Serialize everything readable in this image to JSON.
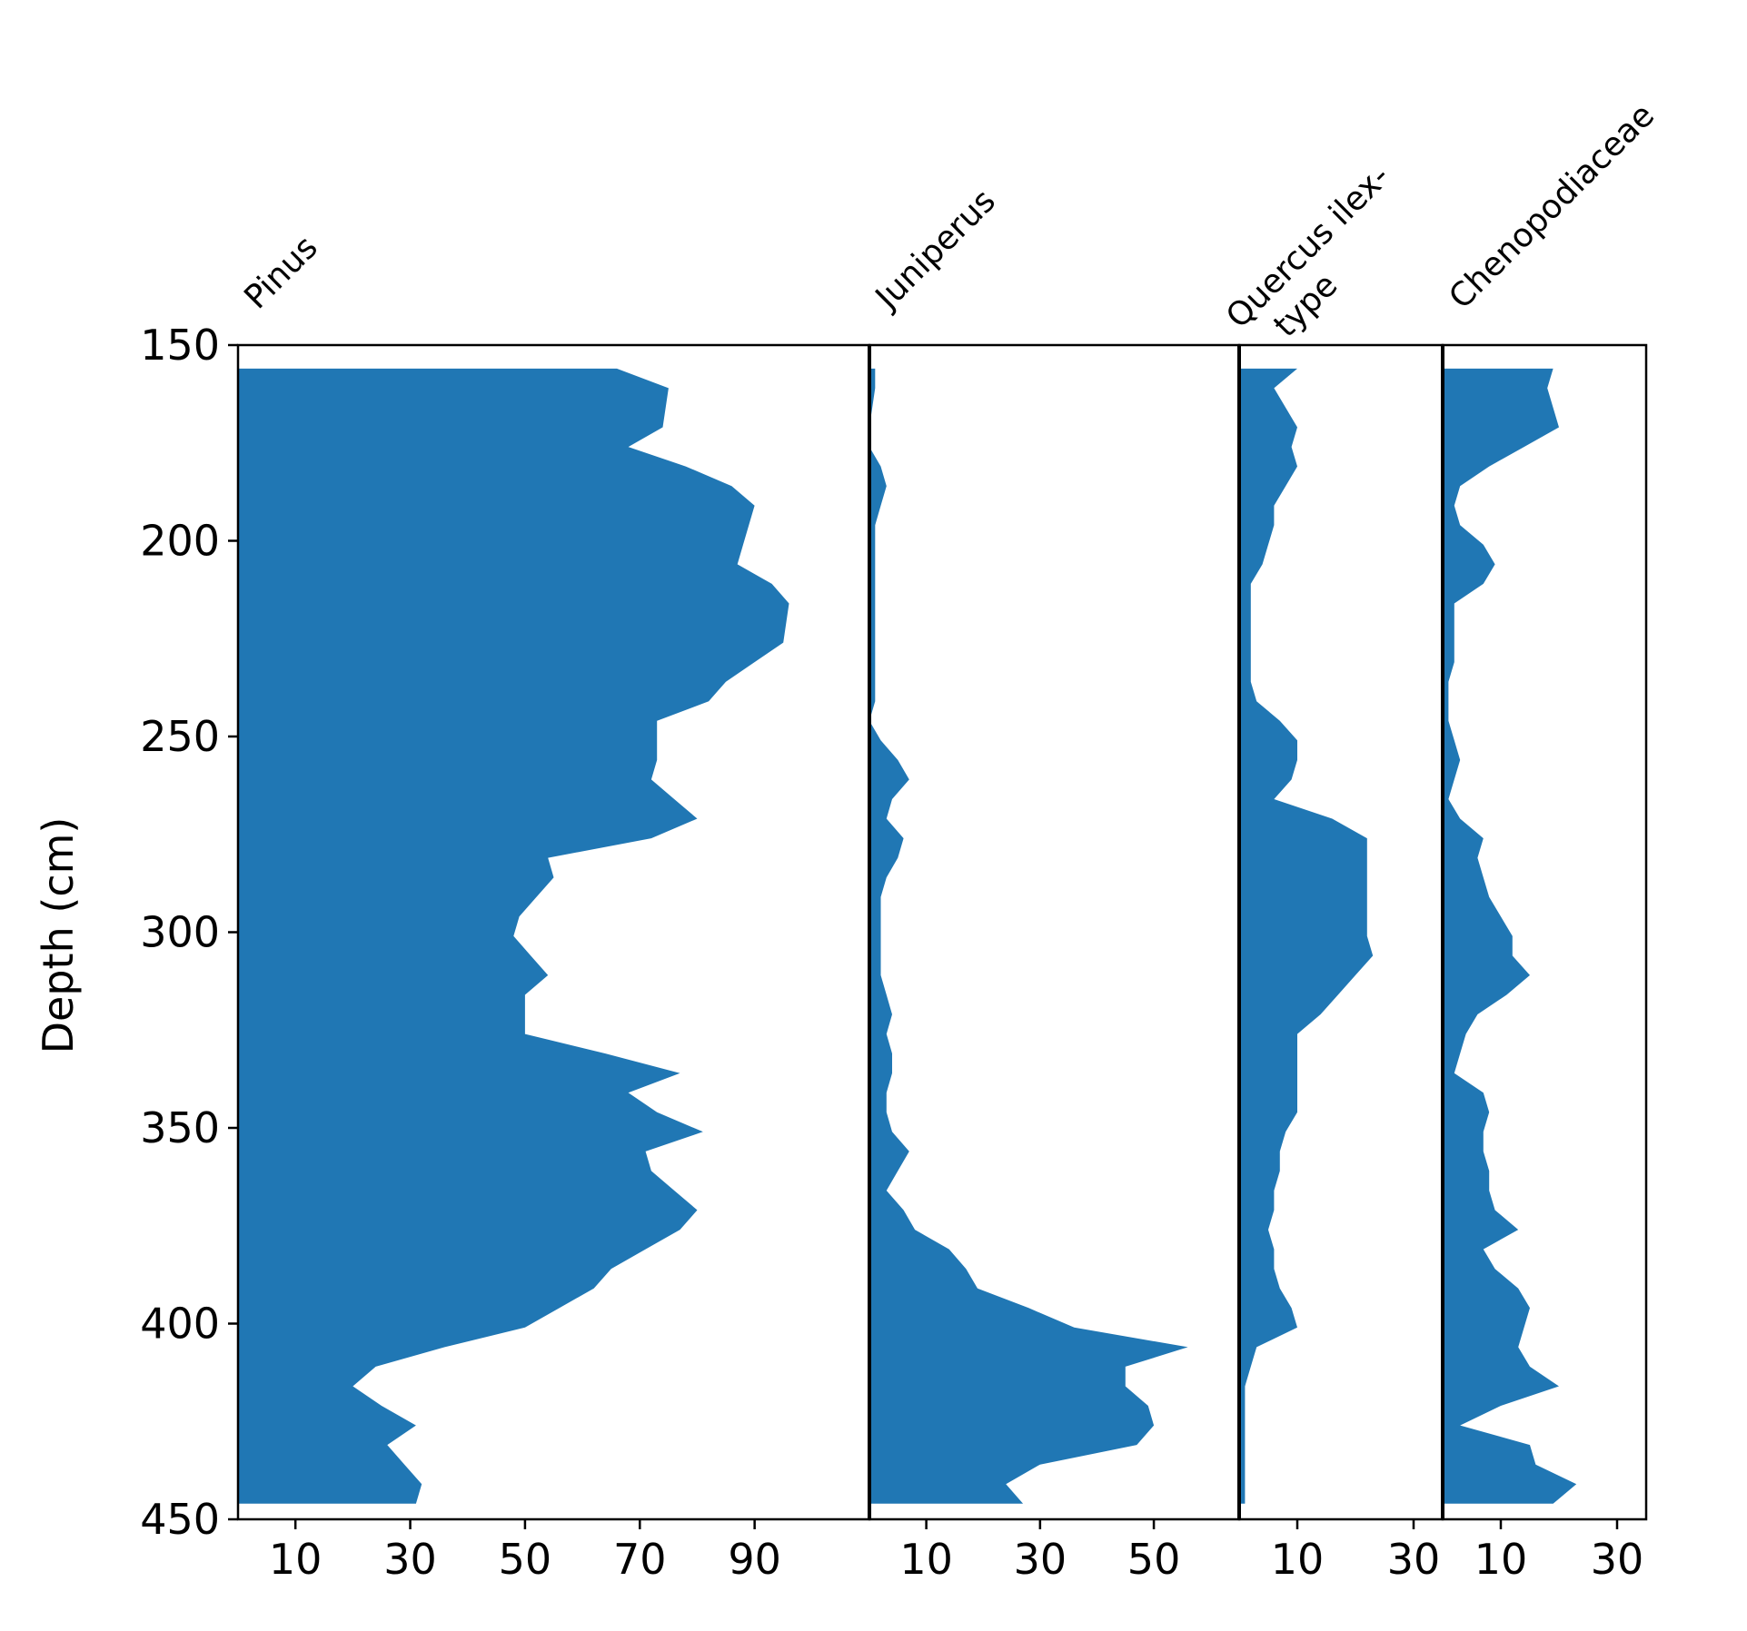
{
  "chart_data": {
    "type": "area",
    "ylabel": "Depth (cm)",
    "ylim": [
      150,
      450
    ],
    "y_inverted": true,
    "yticks": [
      150,
      200,
      250,
      300,
      350,
      400,
      450
    ],
    "series_color": "#2077b4",
    "depths": [
      156,
      161,
      171,
      176,
      181,
      186,
      191,
      196,
      201,
      206,
      211,
      216,
      226,
      231,
      236,
      241,
      246,
      251,
      256,
      261,
      266,
      271,
      276,
      281,
      286,
      291,
      296,
      301,
      306,
      311,
      316,
      321,
      326,
      331,
      336,
      341,
      346,
      351,
      356,
      361,
      366,
      371,
      376,
      381,
      386,
      391,
      396,
      401,
      406,
      411,
      416,
      421,
      426,
      431,
      436,
      441,
      446
    ],
    "panels": [
      {
        "name": "Pinus",
        "xlim": [
          0,
          110
        ],
        "xticks": [
          10,
          30,
          50,
          70,
          90
        ],
        "values": [
          66,
          75,
          74,
          68,
          78,
          86,
          90,
          89,
          88,
          87,
          93,
          96,
          95,
          90,
          85,
          82,
          73,
          73,
          73,
          72,
          76,
          80,
          72,
          54,
          55,
          52,
          49,
          48,
          51,
          54,
          50,
          50,
          50,
          64,
          77,
          68,
          73,
          81,
          71,
          72,
          76,
          80,
          77,
          71,
          65,
          62,
          56,
          50,
          36,
          24,
          20,
          25,
          31,
          26,
          29,
          32,
          31
        ]
      },
      {
        "name": "Juniperus",
        "xlim": [
          0,
          65
        ],
        "xticks": [
          10,
          30,
          50
        ],
        "values": [
          1,
          1,
          0,
          0,
          2,
          3,
          2,
          1,
          1,
          1,
          1,
          1,
          1,
          1,
          1,
          1,
          0,
          2,
          5,
          7,
          4,
          3,
          6,
          5,
          3,
          2,
          2,
          2,
          2,
          2,
          3,
          4,
          3,
          4,
          4,
          3,
          3,
          4,
          7,
          5,
          3,
          6,
          8,
          14,
          17,
          19,
          28,
          36,
          56,
          45,
          45,
          49,
          50,
          47,
          30,
          24,
          27
        ]
      },
      {
        "name": "Quercus ilex-\ntype",
        "xlim": [
          0,
          35
        ],
        "xticks": [
          10,
          30
        ],
        "values": [
          10,
          6,
          10,
          9,
          10,
          8,
          6,
          6,
          5,
          4,
          2,
          2,
          2,
          2,
          2,
          3,
          7,
          10,
          10,
          9,
          6,
          16,
          22,
          22,
          22,
          22,
          22,
          22,
          23,
          20,
          17,
          14,
          10,
          10,
          10,
          10,
          10,
          8,
          7,
          7,
          6,
          6,
          5,
          6,
          6,
          7,
          9,
          10,
          3,
          2,
          1,
          1,
          1,
          1,
          1,
          1,
          1
        ]
      },
      {
        "name": "Chenopodiaceae",
        "xlim": [
          0,
          35
        ],
        "xticks": [
          10,
          30
        ],
        "values": [
          19,
          18,
          20,
          14,
          8,
          3,
          2,
          3,
          7,
          9,
          7,
          2,
          2,
          2,
          1,
          1,
          1,
          2,
          3,
          2,
          1,
          3,
          7,
          6,
          7,
          8,
          10,
          12,
          12,
          15,
          11,
          6,
          4,
          3,
          2,
          7,
          8,
          7,
          7,
          8,
          8,
          9,
          13,
          7,
          9,
          13,
          15,
          14,
          13,
          15,
          20,
          10,
          3,
          15,
          16,
          23,
          19
        ]
      }
    ]
  }
}
